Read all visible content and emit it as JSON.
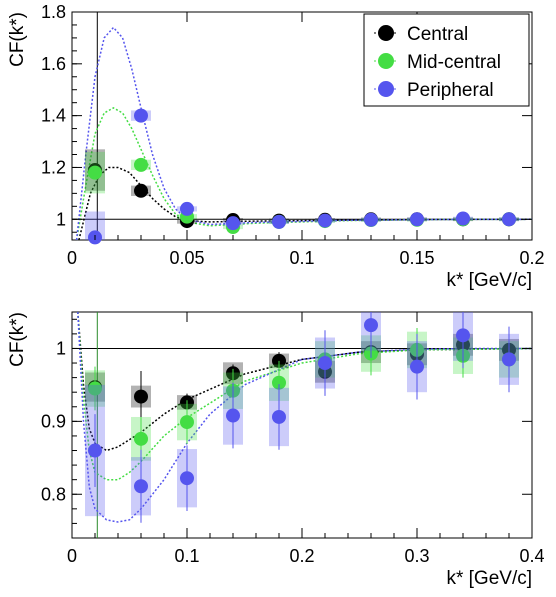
{
  "colors": {
    "central": "#000000",
    "mid_central": "#44dd44",
    "peripheral": "#5555ee",
    "axis": "#000000"
  },
  "chart_data": [
    {
      "type": "scatter",
      "title": "",
      "xlabel": "k* [GeV/c]",
      "ylabel": "CF(k*)",
      "xlim": [
        0,
        0.2
      ],
      "ylim": [
        0.92,
        1.8
      ],
      "xticks": [
        "0",
        "0.05",
        "0.1",
        "0.15",
        "0.2"
      ],
      "yticks": [
        "1",
        "1.2",
        "1.4",
        "1.6",
        "1.8"
      ],
      "reference_line": 1,
      "legend": {
        "placement": "top-right",
        "entries": [
          "Central",
          "Mid-central",
          "Peripheral"
        ]
      },
      "series": [
        {
          "name": "Central",
          "color": "#000000",
          "x": [
            0.01,
            0.03,
            0.05,
            0.07,
            0.09,
            0.11,
            0.13,
            0.15,
            0.17,
            0.19
          ],
          "y": [
            1.19,
            1.11,
            0.993,
            0.997,
            0.995,
            0.998,
            1.0,
            1.0,
            1.0,
            1.0
          ],
          "sys": [
            0.08,
            0.02,
            0.01,
            0.008,
            0.008,
            0.007,
            0.007,
            0.007,
            0.007,
            0.007
          ],
          "fit_x": [
            0.003,
            0.008,
            0.012,
            0.016,
            0.02,
            0.025,
            0.03,
            0.035,
            0.04,
            0.045,
            0.05,
            0.06,
            0.08,
            0.12,
            0.16,
            0.2
          ],
          "fit_y": [
            0.92,
            1.1,
            1.17,
            1.2,
            1.2,
            1.18,
            1.13,
            1.08,
            1.04,
            1.01,
            0.995,
            0.99,
            0.993,
            0.997,
            0.999,
            1.0
          ]
        },
        {
          "name": "Mid-central",
          "color": "#44dd44",
          "x": [
            0.01,
            0.03,
            0.05,
            0.07,
            0.09,
            0.11,
            0.13,
            0.15,
            0.17,
            0.19
          ],
          "y": [
            1.18,
            1.21,
            1.01,
            0.97,
            0.99,
            0.993,
            0.997,
            0.998,
            1.0,
            1.0
          ],
          "sys": [
            0.08,
            0.02,
            0.01,
            0.008,
            0.008,
            0.007,
            0.007,
            0.007,
            0.007,
            0.007
          ],
          "fit_x": [
            0.002,
            0.006,
            0.01,
            0.014,
            0.018,
            0.022,
            0.026,
            0.03,
            0.035,
            0.04,
            0.045,
            0.05,
            0.06,
            0.08,
            0.12,
            0.16,
            0.2
          ],
          "fit_y": [
            0.92,
            1.13,
            1.33,
            1.41,
            1.43,
            1.41,
            1.35,
            1.27,
            1.17,
            1.08,
            1.02,
            0.99,
            0.975,
            0.985,
            0.995,
            0.999,
            1.0
          ]
        },
        {
          "name": "Peripheral",
          "color": "#5555ee",
          "x": [
            0.01,
            0.03,
            0.05,
            0.07,
            0.09,
            0.11,
            0.13,
            0.15,
            0.17,
            0.19
          ],
          "y": [
            0.93,
            1.4,
            1.04,
            0.985,
            0.99,
            0.995,
            0.998,
            1.0,
            1.003,
            1.0
          ],
          "sys": [
            0.1,
            0.02,
            0.01,
            0.008,
            0.008,
            0.007,
            0.007,
            0.007,
            0.007,
            0.007
          ],
          "fit_x": [
            0.002,
            0.006,
            0.01,
            0.014,
            0.018,
            0.022,
            0.026,
            0.03,
            0.035,
            0.04,
            0.045,
            0.05,
            0.06,
            0.08,
            0.12,
            0.16,
            0.2
          ],
          "fit_y": [
            0.92,
            1.25,
            1.55,
            1.7,
            1.74,
            1.7,
            1.58,
            1.43,
            1.25,
            1.12,
            1.04,
            1.0,
            0.98,
            0.988,
            0.996,
            0.999,
            1.0
          ]
        }
      ]
    },
    {
      "type": "scatter",
      "title": "",
      "xlabel": "k* [GeV/c]",
      "ylabel": "CF(k*)",
      "xlim": [
        0,
        0.4
      ],
      "ylim": [
        0.74,
        1.05
      ],
      "xticks": [
        "0",
        "0.1",
        "0.2",
        "0.3",
        "0.4"
      ],
      "yticks": [
        "0.8",
        "0.9",
        "1"
      ],
      "reference_line": 1,
      "series": [
        {
          "name": "Central",
          "color": "#000000",
          "x": [
            0.02,
            0.06,
            0.1,
            0.14,
            0.18,
            0.22,
            0.26,
            0.3,
            0.34,
            0.38
          ],
          "y": [
            0.947,
            0.934,
            0.926,
            0.966,
            0.983,
            0.968,
            0.995,
            0.992,
            1.005,
            0.998
          ],
          "stat": [
            0.015,
            0.035,
            0.012,
            0.012,
            0.012,
            0.012,
            0.012,
            0.012,
            0.012,
            0.012
          ],
          "sys": [
            0.02,
            0.015,
            0.01,
            0.015,
            0.01,
            0.015,
            0.015,
            0.015,
            0.015,
            0.015
          ],
          "fit_x": [
            0.005,
            0.01,
            0.015,
            0.02,
            0.03,
            0.04,
            0.05,
            0.06,
            0.08,
            0.1,
            0.15,
            0.2,
            0.25,
            0.3,
            0.35,
            0.4
          ],
          "fit_y": [
            1.06,
            0.95,
            0.89,
            0.87,
            0.86,
            0.865,
            0.875,
            0.885,
            0.91,
            0.93,
            0.965,
            0.985,
            0.995,
            0.998,
            0.999,
            1.0
          ]
        },
        {
          "name": "Mid-central",
          "color": "#44dd44",
          "x": [
            0.02,
            0.06,
            0.1,
            0.14,
            0.18,
            0.22,
            0.26,
            0.3,
            0.34,
            0.38
          ],
          "y": [
            0.945,
            0.876,
            0.899,
            0.942,
            0.953,
            0.985,
            0.993,
            0.998,
            0.99,
            0.985
          ],
          "stat": [
            0.03,
            0.03,
            0.03,
            0.03,
            0.03,
            0.03,
            0.03,
            0.03,
            0.03,
            0.03
          ],
          "sys": [
            0.025,
            0.03,
            0.025,
            0.025,
            0.025,
            0.025,
            0.025,
            0.025,
            0.025,
            0.025
          ],
          "fit_x": [
            0.005,
            0.01,
            0.015,
            0.02,
            0.03,
            0.04,
            0.05,
            0.06,
            0.08,
            0.1,
            0.15,
            0.2,
            0.25,
            0.3,
            0.35,
            0.4
          ],
          "fit_y": [
            1.06,
            0.93,
            0.86,
            0.83,
            0.82,
            0.82,
            0.83,
            0.845,
            0.88,
            0.905,
            0.955,
            0.98,
            0.993,
            0.998,
            0.999,
            1.0
          ]
        },
        {
          "name": "Peripheral",
          "color": "#5555ee",
          "x": [
            0.02,
            0.06,
            0.1,
            0.14,
            0.18,
            0.22,
            0.26,
            0.3,
            0.34,
            0.38
          ],
          "y": [
            0.86,
            0.811,
            0.822,
            0.908,
            0.906,
            0.98,
            1.032,
            0.975,
            1.018,
            0.985
          ],
          "stat": [
            0.05,
            0.05,
            0.045,
            0.045,
            0.045,
            0.045,
            0.045,
            0.045,
            0.045,
            0.045
          ],
          "sys": [
            0.09,
            0.04,
            0.04,
            0.04,
            0.04,
            0.035,
            0.035,
            0.035,
            0.035,
            0.035
          ],
          "fit_x": [
            0.005,
            0.01,
            0.015,
            0.02,
            0.03,
            0.04,
            0.05,
            0.06,
            0.08,
            0.1,
            0.12,
            0.15,
            0.2,
            0.25,
            0.3,
            0.35,
            0.4
          ],
          "fit_y": [
            1.06,
            0.9,
            0.81,
            0.78,
            0.765,
            0.762,
            0.765,
            0.78,
            0.82,
            0.87,
            0.91,
            0.95,
            0.985,
            0.995,
            0.999,
            1.0,
            1.0
          ]
        }
      ]
    }
  ]
}
